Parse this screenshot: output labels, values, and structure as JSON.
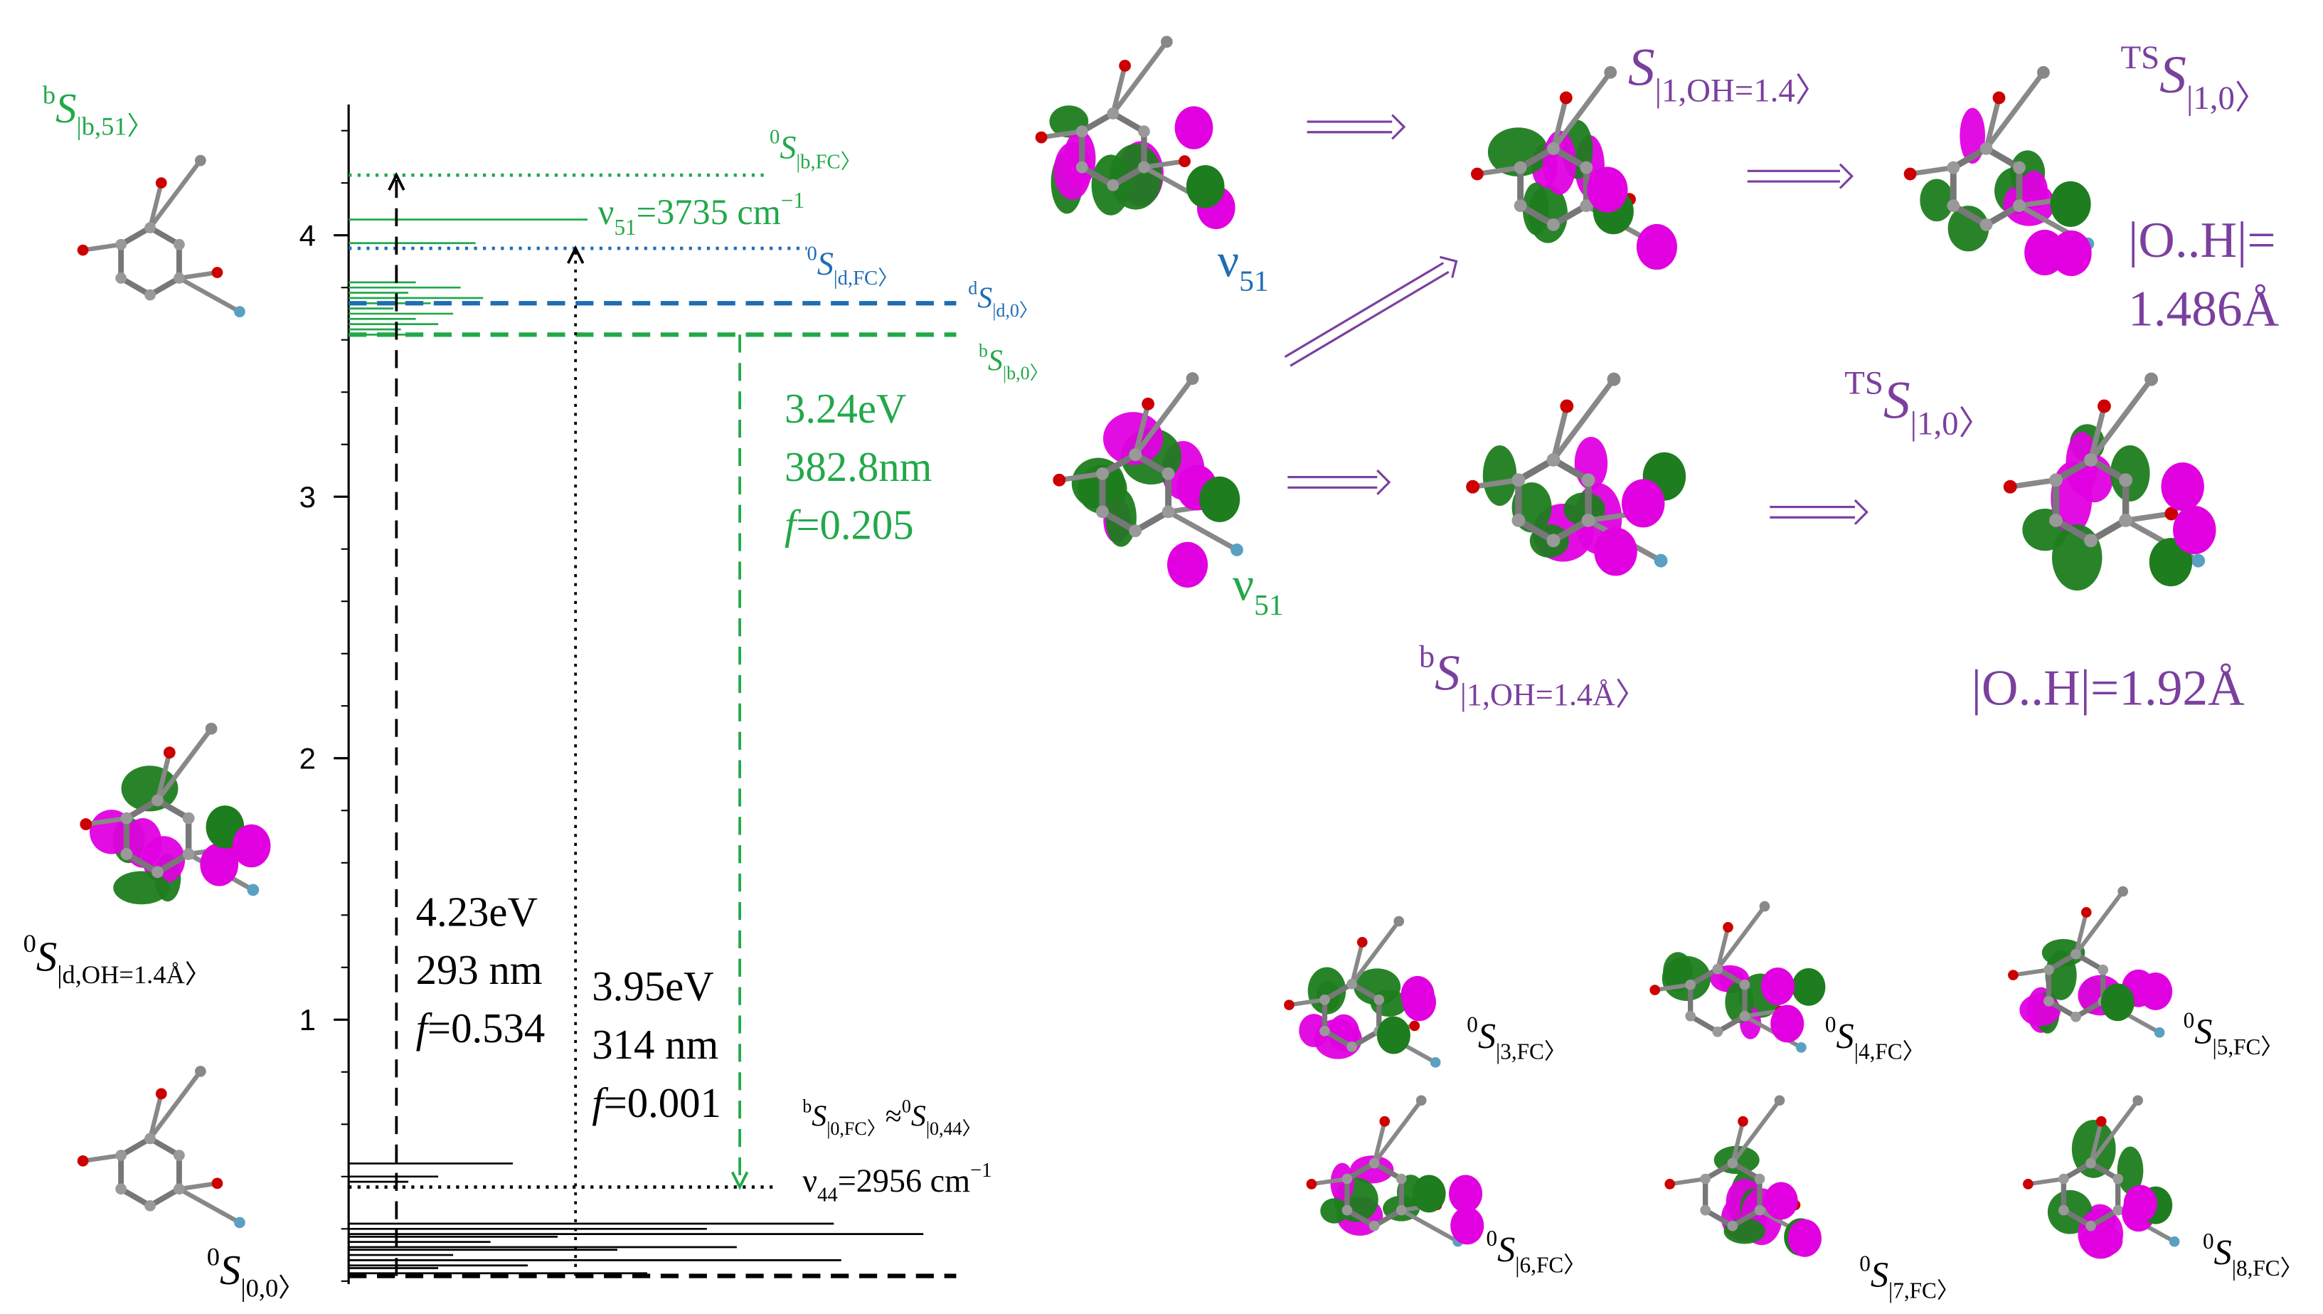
{
  "chart_data": {
    "type": "energy-levels",
    "ylim": [
      0,
      4.5
    ],
    "yticks": [
      1,
      2,
      3,
      4
    ],
    "levels": [
      {
        "value": 4.23,
        "color": "#22a84a",
        "style": "dotted"
      },
      {
        "value": 3.95,
        "color": "#1f6db3",
        "style": "dotted"
      },
      {
        "value": 3.74,
        "color": "#1f6db3",
        "style": "dashed"
      },
      {
        "value": 3.62,
        "color": "#22a84a",
        "style": "dashed"
      },
      {
        "value": 0.36,
        "color": "#000000",
        "style": "dotted"
      },
      {
        "value": 0.02,
        "color": "#000000",
        "style": "dashed"
      }
    ],
    "spectra": [
      {
        "color": "#22a84a",
        "values": [
          4.06,
          3.97,
          3.82,
          3.8,
          3.78,
          3.76,
          3.74,
          3.72,
          3.7,
          3.68,
          3.66,
          3.64,
          3.62
        ]
      },
      {
        "color": "#000000",
        "values": [
          0.45,
          0.4,
          0.38,
          0.22,
          0.2,
          0.18,
          0.17,
          0.15,
          0.13,
          0.12,
          0.1,
          0.08,
          0.06,
          0.05,
          0.03
        ]
      }
    ],
    "transitions": [
      {
        "from": 0.02,
        "to": 4.23,
        "color": "#000000",
        "style": "dashed"
      },
      {
        "from": 0.02,
        "to": 3.95,
        "color": "#000000",
        "style": "dotted"
      },
      {
        "from": 3.62,
        "to": 0.36,
        "color": "#22a84a",
        "style": "dashed"
      }
    ]
  },
  "labels": [
    {
      "color": "#22a84a",
      "parts": [
        {
          "text": "b",
          "style": "sup"
        },
        {
          "text": "S",
          "style": "italic"
        },
        {
          "text": "|b,51〉",
          "style": "sub"
        }
      ]
    },
    {
      "color": "#22a84a",
      "parts": [
        {
          "text": "0",
          "style": "sup"
        },
        {
          "text": "S",
          "style": "italic"
        },
        {
          "text": "|b,FC〉",
          "style": "sub"
        }
      ]
    },
    {
      "color": "#22a84a",
      "parts": [
        {
          "text": "ν",
          "style": "normal"
        },
        {
          "text": "51",
          "style": "sub"
        },
        {
          "text": "=3735 cm",
          "style": "normal"
        },
        {
          "text": "−1",
          "style": "sup"
        }
      ]
    },
    {
      "color": "#1f6db3",
      "parts": [
        {
          "text": "0",
          "style": "sup"
        },
        {
          "text": "S",
          "style": "italic"
        },
        {
          "text": "|d,FC〉",
          "style": "sub"
        }
      ]
    },
    {
      "color": "#1f6db3",
      "parts": [
        {
          "text": "d",
          "style": "sup"
        },
        {
          "text": "S",
          "style": "italic"
        },
        {
          "text": "|d,0〉",
          "style": "sub"
        }
      ]
    },
    {
      "color": "#22a84a",
      "parts": [
        {
          "text": "b",
          "style": "sup"
        },
        {
          "text": "S",
          "style": "italic"
        },
        {
          "text": "|b,0〉",
          "style": "sub"
        }
      ]
    },
    {
      "color": "#22a84a",
      "parts": [
        {
          "text": "3.24eV",
          "style": "normal"
        }
      ]
    },
    {
      "color": "#22a84a",
      "parts": [
        {
          "text": "382.8nm",
          "style": "normal"
        }
      ]
    },
    {
      "color": "#22a84a",
      "parts": [
        {
          "text": "f",
          "style": "italic"
        },
        {
          "text": "=0.205",
          "style": "normal"
        }
      ]
    },
    {
      "color": "#000000",
      "parts": [
        {
          "text": "0",
          "style": "sup"
        },
        {
          "text": "S",
          "style": "italic"
        },
        {
          "text": "|d,OH=1.4Å〉",
          "style": "sub"
        }
      ]
    },
    {
      "color": "#000000",
      "parts": [
        {
          "text": "4.23eV",
          "style": "normal"
        }
      ]
    },
    {
      "color": "#000000",
      "parts": [
        {
          "text": "293 nm",
          "style": "normal"
        }
      ]
    },
    {
      "color": "#000000",
      "parts": [
        {
          "text": "f",
          "style": "italic"
        },
        {
          "text": "=0.534",
          "style": "normal"
        }
      ]
    },
    {
      "color": "#000000",
      "parts": [
        {
          "text": "3.95eV",
          "style": "normal"
        }
      ]
    },
    {
      "color": "#000000",
      "parts": [
        {
          "text": "314 nm",
          "style": "normal"
        }
      ]
    },
    {
      "color": "#000000",
      "parts": [
        {
          "text": "f",
          "style": "italic"
        },
        {
          "text": "=0.001",
          "style": "normal"
        }
      ]
    },
    {
      "color": "#000000",
      "parts": [
        {
          "text": "b",
          "style": "sup"
        },
        {
          "text": "S",
          "style": "italic"
        },
        {
          "text": "|0,FC〉",
          "style": "sub"
        },
        {
          "text": "≈",
          "style": "normal"
        },
        {
          "text": "0",
          "style": "sup"
        },
        {
          "text": "S",
          "style": "italic"
        },
        {
          "text": "|0,44〉",
          "style": "sub"
        }
      ]
    },
    {
      "color": "#000000",
      "parts": [
        {
          "text": "ν",
          "style": "normal"
        },
        {
          "text": "44",
          "style": "sub"
        },
        {
          "text": "=2956 cm",
          "style": "normal"
        },
        {
          "text": "−1",
          "style": "sup"
        }
      ]
    },
    {
      "color": "#000000",
      "parts": [
        {
          "text": "0",
          "style": "sup"
        },
        {
          "text": "S",
          "style": "italic"
        },
        {
          "text": "|0,0〉",
          "style": "sub"
        }
      ]
    },
    {
      "color": "#1f6db3",
      "parts": [
        {
          "text": "ν",
          "style": "normal"
        },
        {
          "text": "51",
          "style": "sub"
        }
      ]
    },
    {
      "color": "#22a84a",
      "parts": [
        {
          "text": "ν",
          "style": "normal"
        },
        {
          "text": "51",
          "style": "sub"
        }
      ]
    },
    {
      "color": "#7b3f9e",
      "parts": [
        {
          "text": "S",
          "style": "italic"
        },
        {
          "text": "|1,OH=1.4〉",
          "style": "sub"
        }
      ]
    },
    {
      "color": "#7b3f9e",
      "parts": [
        {
          "text": "TS",
          "style": "sup"
        },
        {
          "text": "S",
          "style": "italic"
        },
        {
          "text": "|1,0〉",
          "style": "sub"
        }
      ]
    },
    {
      "color": "#7b3f9e",
      "parts": [
        {
          "text": "|O..H|=",
          "style": "normal"
        }
      ]
    },
    {
      "color": "#7b3f9e",
      "parts": [
        {
          "text": "1.486Å",
          "style": "normal"
        }
      ]
    },
    {
      "color": "#7b3f9e",
      "parts": [
        {
          "text": "TS",
          "style": "sup"
        },
        {
          "text": "S",
          "style": "italic"
        },
        {
          "text": "|1,0〉",
          "style": "sub"
        }
      ]
    },
    {
      "color": "#7b3f9e",
      "parts": [
        {
          "text": "b",
          "style": "sup"
        },
        {
          "text": "S",
          "style": "italic"
        },
        {
          "text": "|1,OH=1.4Å〉",
          "style": "sub"
        }
      ]
    },
    {
      "color": "#7b3f9e",
      "parts": [
        {
          "text": "|O..H|=1.92Å",
          "style": "normal"
        }
      ]
    },
    {
      "color": "#000000",
      "parts": [
        {
          "text": "0",
          "style": "sup"
        },
        {
          "text": "S",
          "style": "italic"
        },
        {
          "text": "|3,FC〉",
          "style": "sub"
        }
      ]
    },
    {
      "color": "#000000",
      "parts": [
        {
          "text": "0",
          "style": "sup"
        },
        {
          "text": "S",
          "style": "italic"
        },
        {
          "text": "|4,FC〉",
          "style": "sub"
        }
      ]
    },
    {
      "color": "#000000",
      "parts": [
        {
          "text": "0",
          "style": "sup"
        },
        {
          "text": "S",
          "style": "italic"
        },
        {
          "text": "|5,FC〉",
          "style": "sub"
        }
      ]
    },
    {
      "color": "#000000",
      "parts": [
        {
          "text": "0",
          "style": "sup"
        },
        {
          "text": "S",
          "style": "italic"
        },
        {
          "text": "|6,FC〉",
          "style": "sub"
        }
      ]
    },
    {
      "color": "#000000",
      "parts": [
        {
          "text": "0",
          "style": "sup"
        },
        {
          "text": "S",
          "style": "italic"
        },
        {
          "text": "|7,FC〉",
          "style": "sub"
        }
      ]
    },
    {
      "color": "#000000",
      "parts": [
        {
          "text": "0",
          "style": "sup"
        },
        {
          "text": "S",
          "style": "italic"
        },
        {
          "text": "|8,FC〉",
          "style": "sub"
        }
      ]
    }
  ]
}
